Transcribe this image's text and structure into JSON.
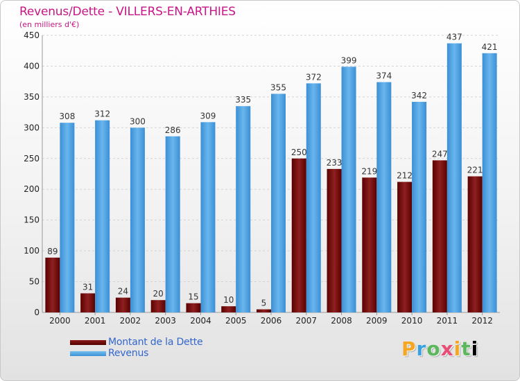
{
  "chart_data": {
    "type": "bar",
    "title": "Revenus/Dette - VILLERS-EN-ARTHIES",
    "subtitle": "(en milliers d'€)",
    "categories": [
      "2000",
      "2001",
      "2002",
      "2003",
      "2004",
      "2005",
      "2006",
      "2007",
      "2008",
      "2009",
      "2010",
      "2011",
      "2012"
    ],
    "series": [
      {
        "name": "Montant de la Dette",
        "values": [
          89,
          31,
          24,
          20,
          15,
          10,
          5,
          250,
          233,
          219,
          212,
          247,
          221
        ],
        "color": "#6b0a0a"
      },
      {
        "name": "Revenus",
        "values": [
          308,
          312,
          300,
          286,
          309,
          335,
          355,
          372,
          399,
          374,
          342,
          437,
          421
        ],
        "color": "#4aa3e6"
      }
    ],
    "ylim": [
      0,
      450
    ],
    "yticks": [
      0,
      50,
      100,
      150,
      200,
      250,
      300,
      350,
      400,
      450
    ],
    "grid": true,
    "legend_position": "bottom-left"
  },
  "logo_text": "Proxiti"
}
